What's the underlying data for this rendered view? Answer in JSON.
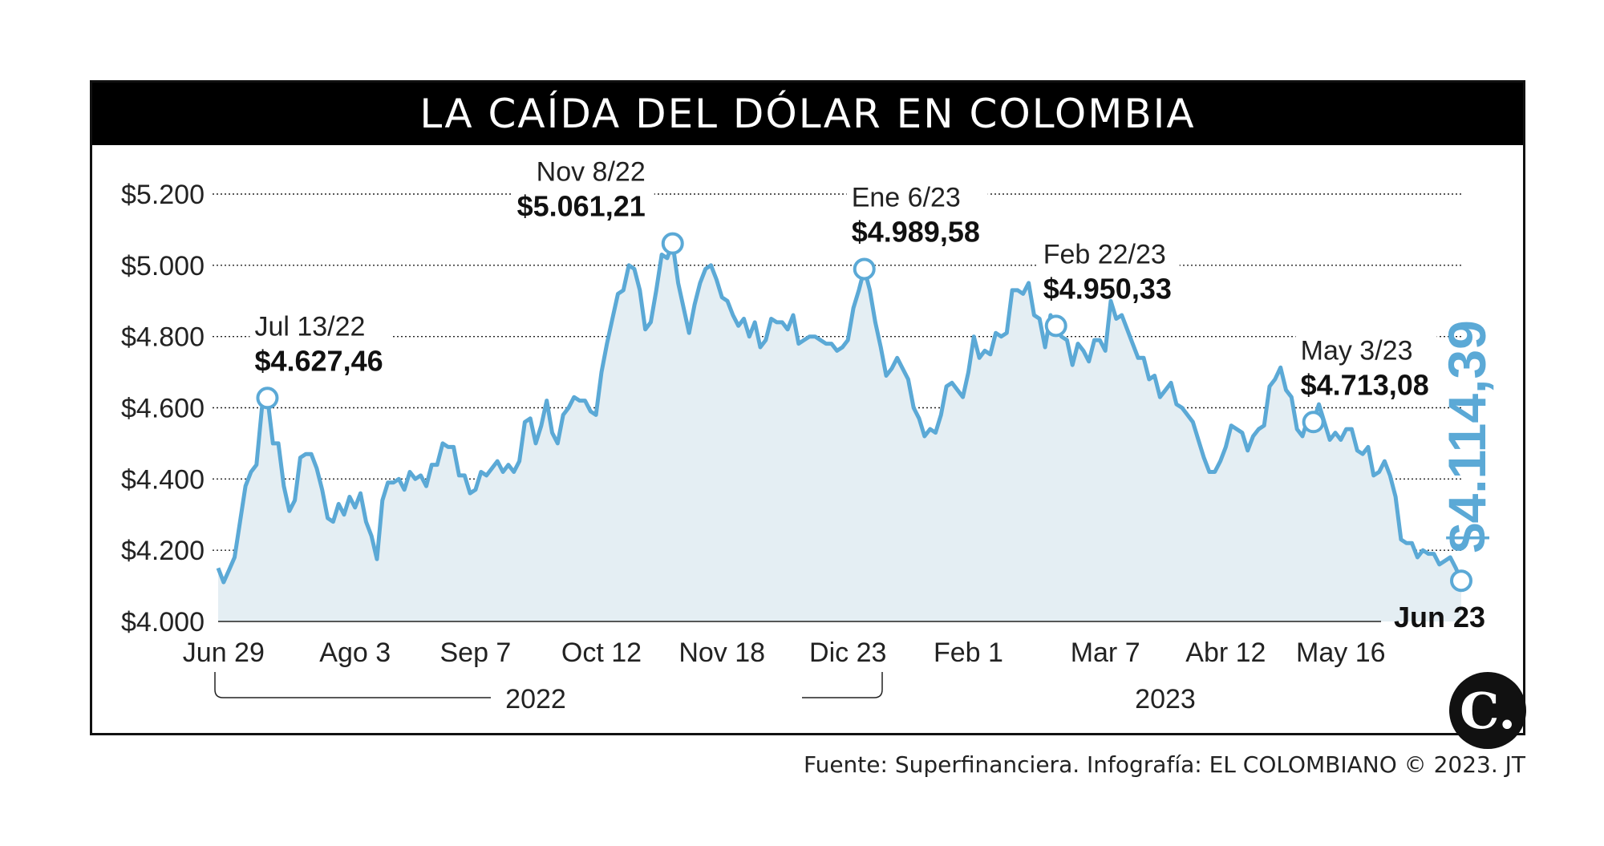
{
  "title": "LA CAÍDA DEL DÓLAR EN COLOMBIA",
  "source": "Fuente: Superfinanciera. Infografía: EL COLOMBIANO © 2023. JT",
  "logo": "C.",
  "colors": {
    "line": "#5ba9d6",
    "area": "#e4eef3",
    "title_bg": "#000000",
    "highlight": "#5ba9d6"
  },
  "chart_data": {
    "type": "area",
    "ylim": [
      4000,
      5200
    ],
    "y_ticks": [
      {
        "value": 4000,
        "label": "$4.000"
      },
      {
        "value": 4200,
        "label": "$4.200"
      },
      {
        "value": 4400,
        "label": "$4.400"
      },
      {
        "value": 4600,
        "label": "$4.600"
      },
      {
        "value": 4800,
        "label": "$4.800"
      },
      {
        "value": 5000,
        "label": "$5.000"
      },
      {
        "value": 5200,
        "label": "$5.200"
      }
    ],
    "x_ticks": [
      {
        "i": 1,
        "label": "Jun 29"
      },
      {
        "i": 25,
        "label": "Ago 3"
      },
      {
        "i": 47,
        "label": "Sep 7"
      },
      {
        "i": 70,
        "label": "Oct 12"
      },
      {
        "i": 92,
        "label": "Nov 18"
      },
      {
        "i": 115,
        "label": "Dic 23"
      },
      {
        "i": 137,
        "label": "Feb 1"
      },
      {
        "i": 162,
        "label": "Mar 7"
      },
      {
        "i": 184,
        "label": "Abr 12"
      },
      {
        "i": 205,
        "label": "May 16"
      }
    ],
    "year_labels": [
      {
        "label": "2022",
        "from": 0,
        "to": 123
      },
      {
        "label": "2023",
        "from": 124,
        "to": 230
      }
    ],
    "values": [
      4150,
      4110,
      4145,
      4180,
      4280,
      4380,
      4420,
      4440,
      4600,
      4627.46,
      4500,
      4500,
      4380,
      4310,
      4340,
      4460,
      4470,
      4470,
      4430,
      4370,
      4290,
      4280,
      4330,
      4300,
      4350,
      4320,
      4360,
      4280,
      4240,
      4175,
      4340,
      4390,
      4390,
      4400,
      4370,
      4420,
      4400,
      4410,
      4380,
      4440,
      4440,
      4500,
      4490,
      4490,
      4410,
      4410,
      4360,
      4370,
      4420,
      4410,
      4430,
      4450,
      4420,
      4440,
      4420,
      4450,
      4560,
      4570,
      4500,
      4550,
      4620,
      4530,
      4500,
      4580,
      4600,
      4630,
      4620,
      4620,
      4590,
      4580,
      4700,
      4780,
      4850,
      4920,
      4930,
      5000,
      4990,
      4930,
      4820,
      4840,
      4930,
      5030,
      5020,
      5061.21,
      4950,
      4880,
      4810,
      4890,
      4950,
      4990,
      5000,
      4960,
      4910,
      4900,
      4860,
      4830,
      4850,
      4800,
      4840,
      4770,
      4790,
      4850,
      4840,
      4840,
      4820,
      4860,
      4780,
      4790,
      4800,
      4800,
      4790,
      4780,
      4780,
      4760,
      4770,
      4790,
      4880,
      4930,
      4989.58,
      4930,
      4840,
      4770,
      4690,
      4710,
      4740,
      4710,
      4680,
      4600,
      4570,
      4520,
      4540,
      4530,
      4580,
      4660,
      4670,
      4650,
      4630,
      4700,
      4800,
      4740,
      4760,
      4750,
      4810,
      4800,
      4810,
      4930,
      4930,
      4920,
      4950.33,
      4860,
      4850,
      4770,
      4860,
      4830,
      4800,
      4790,
      4720,
      4780,
      4760,
      4730,
      4790,
      4790,
      4760,
      4900,
      4850,
      4860,
      4820,
      4780,
      4740,
      4740,
      4680,
      4690,
      4630,
      4650,
      4670,
      4610,
      4600,
      4580,
      4560,
      4510,
      4460,
      4420,
      4420,
      4450,
      4490,
      4550,
      4540,
      4530,
      4480,
      4520,
      4540,
      4550,
      4660,
      4680,
      4713.08,
      4650,
      4630,
      4540,
      4520,
      4570,
      4560,
      4610,
      4560,
      4510,
      4530,
      4510,
      4540,
      4540,
      4480,
      4470,
      4490,
      4410,
      4420,
      4450,
      4410,
      4350,
      4230,
      4220,
      4220,
      4180,
      4200,
      4190,
      4190,
      4160,
      4170,
      4180,
      4150,
      4114.39
    ],
    "annotations": [
      {
        "i": 9,
        "date": "Jul 13/22",
        "value_label": "$4.627,46"
      },
      {
        "i": 83,
        "date": "Nov 8/22",
        "value_label": "$5.061,21"
      },
      {
        "i": 118,
        "date": "Ene 6/23",
        "value_label": "$4.989,58"
      },
      {
        "i": 153,
        "date": "Feb 22/23",
        "value_label": "$4.950,33"
      },
      {
        "i": 200,
        "date": "May 3/23",
        "value_label": "$4.713,08"
      }
    ],
    "last_point": {
      "date": "Jun 23",
      "value_label": "$4.114,39"
    }
  }
}
